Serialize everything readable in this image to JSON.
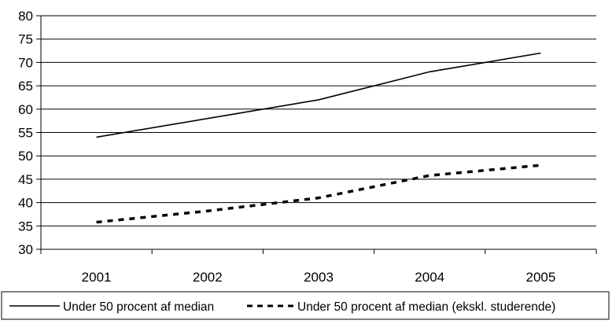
{
  "chart_data": {
    "type": "line",
    "x": [
      "2001",
      "2002",
      "2003",
      "2004",
      "2005"
    ],
    "ylim": [
      30,
      80
    ],
    "yticks": [
      30,
      35,
      40,
      45,
      50,
      55,
      60,
      65,
      70,
      75,
      80
    ],
    "grid": true,
    "legend_placement": "bottom",
    "series": [
      {
        "name": "Under 50 procent af median",
        "values": [
          54,
          58,
          62,
          68,
          72
        ],
        "style": "solid",
        "color": "#000000"
      },
      {
        "name": "Under 50 procent af median (ekskl. studerende)",
        "values": [
          35.8,
          38.2,
          41,
          45.8,
          48
        ],
        "style": "dashed",
        "color": "#000000"
      }
    ]
  }
}
